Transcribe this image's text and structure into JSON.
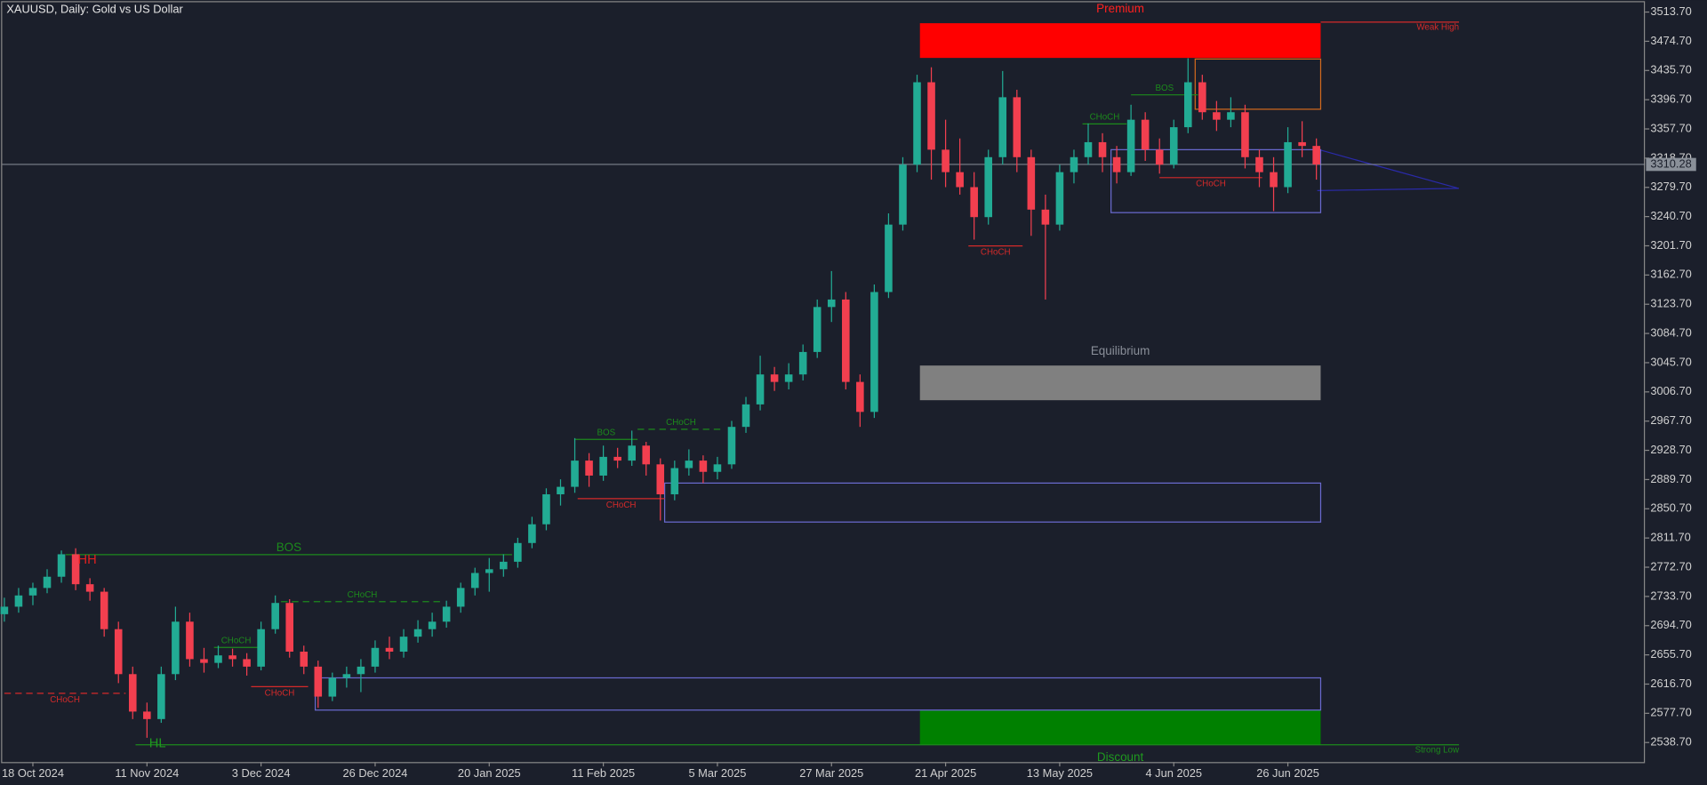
{
  "chart_data": {
    "type": "candlestick",
    "title": "XAUUSD, Daily:  Gold vs US Dollar",
    "up_color": "#22ab94",
    "down_color": "#f23f4f",
    "current_price": 3310.28,
    "ylim": [
      2512.6,
      3526.8
    ],
    "yticks": [
      {
        "value": 3513.7,
        "label": "3513.70"
      },
      {
        "value": 3474.7,
        "label": "3474.70"
      },
      {
        "value": 3435.7,
        "label": "3435.70"
      },
      {
        "value": 3396.7,
        "label": "3396.70"
      },
      {
        "value": 3357.7,
        "label": "3357.70"
      },
      {
        "value": 3318.7,
        "label": "3318.70"
      },
      {
        "value": 3279.7,
        "label": "3279.70"
      },
      {
        "value": 3240.7,
        "label": "3240.70"
      },
      {
        "value": 3201.7,
        "label": "3201.70"
      },
      {
        "value": 3162.7,
        "label": "3162.70"
      },
      {
        "value": 3123.7,
        "label": "3123.70"
      },
      {
        "value": 3084.7,
        "label": "3084.70"
      },
      {
        "value": 3045.7,
        "label": "3045.70"
      },
      {
        "value": 3006.7,
        "label": "3006.70"
      },
      {
        "value": 2967.7,
        "label": "2967.70"
      },
      {
        "value": 2928.7,
        "label": "2928.70"
      },
      {
        "value": 2889.7,
        "label": "2889.70"
      },
      {
        "value": 2850.7,
        "label": "2850.70"
      },
      {
        "value": 2811.7,
        "label": "2811.70"
      },
      {
        "value": 2772.7,
        "label": "2772.70"
      },
      {
        "value": 2733.7,
        "label": "2733.70"
      },
      {
        "value": 2694.7,
        "label": "2694.70"
      },
      {
        "value": 2655.7,
        "label": "2655.70"
      },
      {
        "value": 2616.7,
        "label": "2616.70"
      },
      {
        "value": 2577.7,
        "label": "2577.70"
      },
      {
        "value": 2538.7,
        "label": "2538.70"
      }
    ],
    "xticks": [
      {
        "value": 2,
        "label": "18 Oct 2024"
      },
      {
        "value": 10,
        "label": "11 Nov 2024"
      },
      {
        "value": 18,
        "label": "3 Dec 2024"
      },
      {
        "value": 26,
        "label": "26 Dec 2024"
      },
      {
        "value": 34,
        "label": "20 Jan 2025"
      },
      {
        "value": 42,
        "label": "11 Feb 2025"
      },
      {
        "value": 50,
        "label": "5 Mar 2025"
      },
      {
        "value": 58,
        "label": "27 Mar 2025"
      },
      {
        "value": 66,
        "label": "21 Apr 2025"
      },
      {
        "value": 74,
        "label": "13 May 2025"
      },
      {
        "value": 82,
        "label": "4 Jun 2025"
      },
      {
        "value": 90,
        "label": "26 Jun 2025"
      }
    ],
    "candles": [
      [
        2710,
        2732,
        2700,
        2720
      ],
      [
        2720,
        2745,
        2712,
        2735
      ],
      [
        2735,
        2752,
        2722,
        2745
      ],
      [
        2745,
        2770,
        2738,
        2760
      ],
      [
        2760,
        2795,
        2752,
        2790
      ],
      [
        2790,
        2798,
        2742,
        2750
      ],
      [
        2750,
        2758,
        2728,
        2740
      ],
      [
        2740,
        2745,
        2680,
        2690
      ],
      [
        2690,
        2700,
        2618,
        2630
      ],
      [
        2630,
        2640,
        2570,
        2580
      ],
      [
        2580,
        2592,
        2545,
        2570
      ],
      [
        2570,
        2640,
        2565,
        2630
      ],
      [
        2630,
        2720,
        2622,
        2700
      ],
      [
        2700,
        2712,
        2640,
        2650
      ],
      [
        2650,
        2665,
        2632,
        2645
      ],
      [
        2645,
        2668,
        2638,
        2655
      ],
      [
        2655,
        2664,
        2640,
        2650
      ],
      [
        2650,
        2658,
        2628,
        2640
      ],
      [
        2640,
        2700,
        2635,
        2690
      ],
      [
        2690,
        2735,
        2684,
        2725
      ],
      [
        2725,
        2730,
        2652,
        2660
      ],
      [
        2660,
        2668,
        2630,
        2640
      ],
      [
        2640,
        2648,
        2585,
        2600
      ],
      [
        2600,
        2632,
        2594,
        2625
      ],
      [
        2625,
        2640,
        2612,
        2630
      ],
      [
        2630,
        2650,
        2606,
        2640
      ],
      [
        2640,
        2675,
        2632,
        2665
      ],
      [
        2665,
        2680,
        2650,
        2660
      ],
      [
        2660,
        2690,
        2652,
        2680
      ],
      [
        2680,
        2702,
        2672,
        2690
      ],
      [
        2690,
        2712,
        2680,
        2700
      ],
      [
        2700,
        2728,
        2692,
        2720
      ],
      [
        2720,
        2752,
        2712,
        2745
      ],
      [
        2745,
        2772,
        2735,
        2765
      ],
      [
        2765,
        2785,
        2740,
        2770
      ],
      [
        2770,
        2790,
        2760,
        2780
      ],
      [
        2780,
        2812,
        2772,
        2805
      ],
      [
        2805,
        2840,
        2798,
        2830
      ],
      [
        2830,
        2878,
        2822,
        2870
      ],
      [
        2870,
        2890,
        2855,
        2880
      ],
      [
        2880,
        2945,
        2872,
        2915
      ],
      [
        2915,
        2925,
        2880,
        2895
      ],
      [
        2895,
        2935,
        2888,
        2920
      ],
      [
        2920,
        2932,
        2905,
        2915
      ],
      [
        2915,
        2955,
        2908,
        2935
      ],
      [
        2935,
        2940,
        2895,
        2910
      ],
      [
        2910,
        2918,
        2835,
        2870
      ],
      [
        2870,
        2915,
        2862,
        2905
      ],
      [
        2905,
        2930,
        2895,
        2915
      ],
      [
        2915,
        2922,
        2885,
        2900
      ],
      [
        2900,
        2920,
        2890,
        2910
      ],
      [
        2910,
        2968,
        2904,
        2960
      ],
      [
        2960,
        3000,
        2952,
        2990
      ],
      [
        2990,
        3055,
        2982,
        3030
      ],
      [
        3030,
        3040,
        3008,
        3020
      ],
      [
        3020,
        3045,
        3010,
        3030
      ],
      [
        3030,
        3070,
        3022,
        3060
      ],
      [
        3060,
        3130,
        3052,
        3120
      ],
      [
        3120,
        3168,
        3100,
        3130
      ],
      [
        3130,
        3140,
        3010,
        3020
      ],
      [
        3020,
        3030,
        2960,
        2980
      ],
      [
        2980,
        3150,
        2972,
        3140
      ],
      [
        3140,
        3245,
        3132,
        3230
      ],
      [
        3230,
        3320,
        3222,
        3310
      ],
      [
        3310,
        3430,
        3300,
        3420
      ],
      [
        3420,
        3440,
        3290,
        3330
      ],
      [
        3330,
        3370,
        3280,
        3300
      ],
      [
        3300,
        3345,
        3270,
        3280
      ],
      [
        3280,
        3300,
        3210,
        3240
      ],
      [
        3240,
        3330,
        3230,
        3320
      ],
      [
        3320,
        3435,
        3310,
        3400
      ],
      [
        3400,
        3410,
        3300,
        3320
      ],
      [
        3320,
        3330,
        3215,
        3250
      ],
      [
        3250,
        3270,
        3130,
        3230
      ],
      [
        3230,
        3310,
        3222,
        3300
      ],
      [
        3300,
        3330,
        3285,
        3320
      ],
      [
        3320,
        3365,
        3310,
        3340
      ],
      [
        3340,
        3352,
        3300,
        3320
      ],
      [
        3320,
        3335,
        3285,
        3300
      ],
      [
        3300,
        3390,
        3295,
        3370
      ],
      [
        3370,
        3380,
        3315,
        3330
      ],
      [
        3330,
        3345,
        3298,
        3310
      ],
      [
        3310,
        3370,
        3305,
        3360
      ],
      [
        3360,
        3452,
        3352,
        3420
      ],
      [
        3420,
        3430,
        3370,
        3380
      ],
      [
        3380,
        3395,
        3355,
        3370
      ],
      [
        3370,
        3400,
        3360,
        3380
      ],
      [
        3380,
        3390,
        3305,
        3320
      ],
      [
        3320,
        3330,
        3280,
        3300
      ],
      [
        3300,
        3320,
        3248,
        3280
      ],
      [
        3280,
        3360,
        3272,
        3340
      ],
      [
        3340,
        3368,
        3320,
        3335
      ],
      [
        3335,
        3345,
        3290,
        3310.28
      ]
    ],
    "zones": [
      {
        "name": "Premium",
        "top": 3498.8,
        "bottom": 3452.5,
        "start": 64.2,
        "end": 92.3,
        "fill": "#ff0000",
        "text_color": "#ff2020",
        "label_pos": "above"
      },
      {
        "name": "Equilibrium",
        "top": 3041.9,
        "bottom": 2995.6,
        "start": 64.2,
        "end": 92.3,
        "fill": "#808080",
        "text_color": "#8a8f99",
        "label_pos": "above"
      },
      {
        "name": "Discount",
        "top": 2582,
        "bottom": 2535.7,
        "start": 64.2,
        "end": 92.3,
        "fill": "#008000",
        "text_color": "#1f9a1f",
        "label_pos": "below"
      },
      {
        "top": 3451,
        "bottom": 3384,
        "start": 83.5,
        "end": 92.3,
        "stroke": "#d2691e"
      },
      {
        "top": 3330,
        "bottom": 3246,
        "start": 77.6,
        "end": 92.3,
        "stroke": "#6a6ad0"
      },
      {
        "top": 2885,
        "bottom": 2833,
        "start": 46.3,
        "end": 92.3,
        "stroke": "#6a6ad0"
      },
      {
        "top": 2625,
        "bottom": 2582,
        "start": 21.8,
        "end": 92.3,
        "stroke": "#6a6ad0"
      }
    ],
    "structures": [
      {
        "label": "CHoCH",
        "price": 2604.4,
        "start": 0,
        "end": 8.5,
        "color": "#d42a2a",
        "dashed": true,
        "label_pos": "below"
      },
      {
        "label": "BOS",
        "price": 2789.5,
        "start": 4.3,
        "end": 35.6,
        "color": "#1c8a1c",
        "dashed": false,
        "label_pos": "above"
      },
      {
        "label": "CHoCH",
        "price": 2665.6,
        "start": 14.7,
        "end": 17.8,
        "color": "#1c8a1c",
        "dashed": false,
        "label_pos": "above"
      },
      {
        "label": "CHoCH",
        "price": 2613.3,
        "start": 17.3,
        "end": 21.3,
        "color": "#d42a2a",
        "dashed": false,
        "label_pos": "below"
      },
      {
        "label": "CHoCH",
        "price": 2726.8,
        "start": 19.4,
        "end": 30.8,
        "color": "#1c8a1c",
        "dashed": true,
        "label_pos": "above"
      },
      {
        "label": "BOS",
        "price": 2943.3,
        "start": 40,
        "end": 44.4,
        "color": "#1c8a1c",
        "dashed": false,
        "label_pos": "above"
      },
      {
        "label": "CHoCH",
        "price": 2864.2,
        "start": 40.2,
        "end": 46.3,
        "color": "#d42a2a",
        "dashed": false,
        "label_pos": "below"
      },
      {
        "label": "CHoCH",
        "price": 2956.8,
        "start": 44.4,
        "end": 50.5,
        "color": "#1c8a1c",
        "dashed": true,
        "label_pos": "above"
      },
      {
        "label": "CHoCH",
        "price": 3201.6,
        "start": 67.6,
        "end": 71.4,
        "color": "#d42a2a",
        "dashed": false,
        "label_pos": "below"
      },
      {
        "label": "CHoCH",
        "price": 3364.4,
        "start": 75.6,
        "end": 78.7,
        "color": "#1c8a1c",
        "dashed": false,
        "label_pos": "above"
      },
      {
        "label": "BOS",
        "price": 3403.2,
        "start": 79,
        "end": 83.7,
        "color": "#1c8a1c",
        "dashed": false,
        "label_pos": "above"
      },
      {
        "label": "CHoCH",
        "price": 3292.7,
        "start": 81,
        "end": 88.2,
        "color": "#d42a2a",
        "dashed": false,
        "label_pos": "below"
      },
      {
        "label": "Weak High",
        "price": 3500.3,
        "start": 92.3,
        "end": 102,
        "color": "#d42a2a",
        "dashed": false,
        "label_pos": "end"
      },
      {
        "label": "Strong Low",
        "price": 2535.7,
        "start": 9.2,
        "end": 102,
        "color": "#1c8a1c",
        "dashed": false,
        "label_pos": "end"
      }
    ],
    "points": [
      {
        "label": "HH",
        "index": 5,
        "price": 2785,
        "color": "#e02020"
      },
      {
        "label": "HL",
        "index": 10,
        "price": 2540,
        "color": "#1f9a1f"
      }
    ]
  }
}
